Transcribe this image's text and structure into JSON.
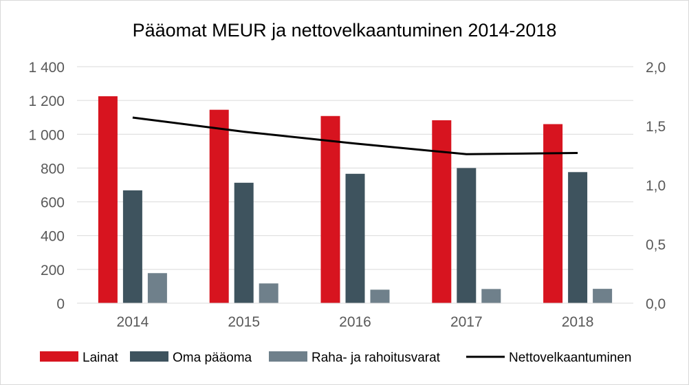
{
  "chart_data": {
    "type": "bar",
    "title": "Pääomat MEUR ja nettovelkaantuminen 2014-2018",
    "categories": [
      "2014",
      "2015",
      "2016",
      "2017",
      "2018"
    ],
    "series": [
      {
        "name": "Lainat",
        "type": "bar",
        "axis": "left",
        "color": "#d7141f",
        "values": [
          1225,
          1145,
          1108,
          1083,
          1060
        ]
      },
      {
        "name": "Oma pääoma",
        "type": "bar",
        "axis": "left",
        "color": "#3e535e",
        "values": [
          668,
          713,
          766,
          800,
          776
        ]
      },
      {
        "name": "Raha- ja rahoitusvarat",
        "type": "bar",
        "axis": "left",
        "color": "#6f808b",
        "values": [
          178,
          117,
          80,
          84,
          85
        ]
      },
      {
        "name": "Nettovelkaantuminen",
        "type": "line",
        "axis": "right",
        "color": "#000000",
        "values": [
          1.57,
          1.45,
          1.35,
          1.26,
          1.27
        ]
      }
    ],
    "y_left": {
      "min": 0,
      "max": 1400,
      "ticks": [
        0,
        200,
        400,
        600,
        800,
        1000,
        1200,
        1400
      ],
      "tick_labels": [
        "0",
        "200",
        "400",
        "600",
        "800",
        "1 000",
        "1 200",
        "1 400"
      ]
    },
    "y_right": {
      "min": 0,
      "max": 2.0,
      "ticks": [
        0,
        0.5,
        1.0,
        1.5,
        2.0
      ],
      "tick_labels": [
        "0,0",
        "0,5",
        "1,0",
        "1,5",
        "2,0"
      ]
    },
    "grid": true,
    "legend_position": "bottom",
    "colors": {
      "gridline": "#d9d9d9",
      "axis": "#d9d9d9",
      "text": "#595959"
    }
  }
}
